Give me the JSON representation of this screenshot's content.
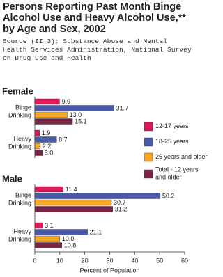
{
  "header": {
    "title": "Persons Reporting Past Month Binge Alcohol Use and Heavy Alcohol Use,** by Age and Sex, 2002",
    "source": "Source (II.3): Substance Abuse and Mental Health Services Administration, National Survey on Drug Use and Health"
  },
  "chart_data": [
    {
      "type": "bar",
      "title": "Female",
      "categories": [
        "Binge Drinking",
        "Heavy Drinking"
      ],
      "series": [
        {
          "name": "12-17 years",
          "color": "#e0195a",
          "values": [
            9.9,
            1.9
          ],
          "value_labels": [
            "9.9",
            "1.9"
          ]
        },
        {
          "name": "18-25 years",
          "color": "#4a5aa8",
          "values": [
            31.7,
            8.7
          ],
          "value_labels": [
            "31.7",
            "8.7"
          ]
        },
        {
          "name": "26 years and older",
          "color": "#f5a623",
          "values": [
            13,
            2.2
          ],
          "value_labels": [
            "13.0",
            "2.2"
          ]
        },
        {
          "name": "Total - 12 years and older",
          "color": "#7a2448",
          "values": [
            15.1,
            3
          ],
          "value_labels": [
            "15.1",
            "3.0"
          ]
        }
      ],
      "xlim": [
        0,
        60
      ]
    },
    {
      "type": "bar",
      "title": "Male",
      "categories": [
        "Binge Drinking",
        "Heavy Drinking"
      ],
      "series": [
        {
          "name": "12-17 years",
          "color": "#e0195a",
          "values": [
            11.4,
            3.1
          ],
          "value_labels": [
            "11.4",
            "3.1"
          ]
        },
        {
          "name": "18-25 years",
          "color": "#4a5aa8",
          "values": [
            50.2,
            21.1
          ],
          "value_labels": [
            "50.2",
            "21.1"
          ]
        },
        {
          "name": "26 years and older",
          "color": "#f5a623",
          "values": [
            30.7,
            10
          ],
          "value_labels": [
            "30.7",
            "10.0"
          ]
        },
        {
          "name": "Total - 12 years and older",
          "color": "#7a2448",
          "values": [
            31.2,
            10.8
          ],
          "value_labels": [
            "31.2",
            "10.8"
          ]
        }
      ],
      "xlim": [
        0,
        60
      ],
      "xticks": [
        0,
        10,
        20,
        30,
        40,
        50,
        60
      ],
      "xlabel": "Percent of Population"
    }
  ]
}
